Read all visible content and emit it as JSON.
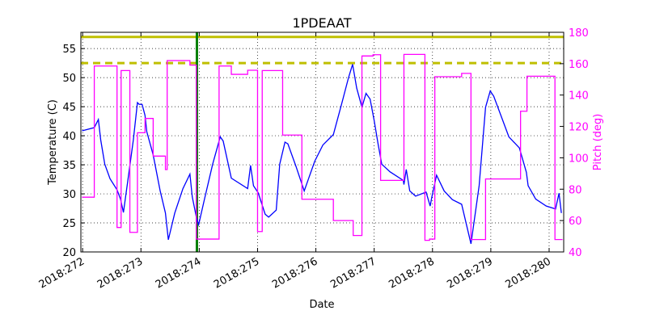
{
  "chart_data": {
    "type": "line",
    "title": "1PDEAAT",
    "xlabel": "Date",
    "ylabel": "Temperature (C)",
    "y2label": "Pitch (deg)",
    "xlim": [
      271.97,
      280.25
    ],
    "ylim": [
      20,
      57.8
    ],
    "y2lim": [
      40,
      180
    ],
    "grid": true,
    "x_ticks": [
      272,
      273,
      274,
      275,
      276,
      277,
      278,
      279,
      280
    ],
    "x_tick_labels": [
      "2018:272",
      "2018:273",
      "2018:274",
      "2018:275",
      "2018:276",
      "2018:277",
      "2018:278",
      "2018:279",
      "2018:280"
    ],
    "y_ticks": [
      20,
      25,
      30,
      35,
      40,
      45,
      50,
      55
    ],
    "y_tick_labels": [
      "20",
      "25",
      "30",
      "35",
      "40",
      "45",
      "50",
      "55"
    ],
    "y2_ticks": [
      40,
      60,
      80,
      100,
      120,
      140,
      160,
      180
    ],
    "y2_tick_labels": [
      "40",
      "60",
      "80",
      "100",
      "120",
      "140",
      "160",
      "180"
    ],
    "colors": {
      "temperature": "#0000ff",
      "pitch": "#ff00ff",
      "limit": "#bfbf00",
      "marker": "#007f00",
      "y2axis": "#ff00ff"
    },
    "reference_lines": [
      {
        "axis": "y",
        "value": 57.0,
        "style": "solid"
      },
      {
        "axis": "y",
        "value": 52.5,
        "style": "dashed"
      },
      {
        "axis": "x",
        "value": 273.96,
        "style": "solid"
      }
    ],
    "series": [
      {
        "axis": "left",
        "x": [
          271.99,
          272.2,
          272.27,
          272.31,
          272.38,
          272.47,
          272.59,
          272.65,
          272.7,
          272.77,
          272.87,
          272.94,
          272.97,
          273.02,
          273.07,
          273.1,
          273.21,
          273.33,
          273.42,
          273.47,
          273.58,
          273.72,
          273.84,
          273.88,
          273.95,
          273.99,
          274.09,
          274.23,
          274.36,
          274.41,
          274.55,
          274.83,
          274.88,
          274.93,
          275.01,
          275.13,
          275.19,
          275.32,
          275.38,
          275.47,
          275.52,
          275.66,
          275.8,
          275.98,
          276.12,
          276.3,
          276.44,
          276.56,
          276.63,
          276.7,
          276.79,
          276.86,
          276.93,
          277.0,
          277.07,
          277.13,
          277.27,
          277.5,
          277.51,
          277.55,
          277.61,
          277.71,
          277.89,
          277.96,
          277.99,
          278.07,
          278.2,
          278.34,
          278.5,
          278.66,
          278.8,
          278.91,
          278.99,
          279.05,
          279.31,
          279.49,
          279.61,
          279.64,
          279.77,
          279.95,
          280.11,
          280.17,
          280.21
        ],
        "y": [
          40.85,
          41.4,
          42.8,
          39.3,
          35.1,
          32.6,
          30.7,
          29.1,
          26.8,
          31.9,
          39.3,
          45.7,
          45.4,
          45.4,
          43.5,
          40.7,
          36.7,
          30.5,
          26.7,
          22.1,
          26.7,
          30.9,
          33.4,
          29.5,
          26.0,
          24.7,
          29.1,
          35.1,
          39.8,
          39.1,
          32.7,
          30.9,
          34.9,
          31.4,
          30.2,
          26.5,
          26.0,
          27.2,
          35.1,
          38.9,
          38.6,
          34.7,
          30.5,
          35.6,
          38.4,
          40.2,
          45.4,
          50.0,
          52.3,
          48.2,
          44.9,
          47.3,
          46.3,
          42.6,
          38.4,
          35.1,
          33.8,
          32.3,
          31.6,
          34.2,
          30.5,
          29.6,
          30.3,
          27.9,
          29.5,
          33.2,
          30.5,
          29.0,
          28.2,
          21.4,
          31.4,
          44.9,
          47.7,
          46.8,
          39.8,
          37.9,
          33.7,
          31.4,
          29.1,
          27.9,
          27.4,
          30.1,
          26.7
        ]
      },
      {
        "axis": "right",
        "step": "post",
        "x": [
          271.99,
          272.2,
          272.59,
          272.66,
          272.81,
          272.94,
          273.07,
          273.21,
          273.42,
          273.45,
          273.84,
          273.95,
          274.34,
          274.55,
          274.83,
          275.0,
          275.08,
          275.43,
          275.76,
          276.3,
          276.64,
          276.79,
          276.98,
          277.11,
          277.51,
          277.87,
          277.95,
          278.04,
          278.5,
          278.66,
          278.91,
          279.51,
          279.62,
          280.1,
          280.23
        ],
        "y": [
          74.9,
          158.5,
          55.6,
          155.6,
          52.5,
          116.0,
          125.1,
          101.1,
          92.5,
          162.0,
          159.1,
          48.2,
          158.5,
          153.2,
          155.8,
          53.0,
          155.6,
          114.5,
          73.6,
          60.0,
          50.5,
          164.9,
          165.7,
          85.6,
          165.9,
          47.4,
          48.2,
          151.7,
          153.8,
          47.9,
          86.5,
          129.7,
          152.0,
          47.9,
          47.9
        ]
      }
    ]
  }
}
